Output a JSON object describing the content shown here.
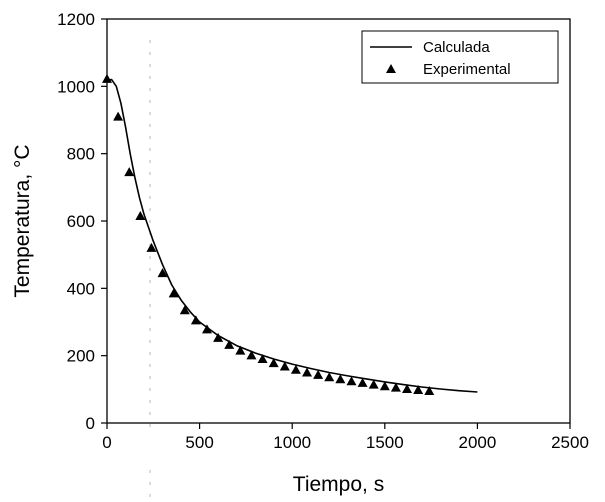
{
  "chart_data": {
    "type": "line",
    "title": "",
    "xlabel": "Tiempo, s",
    "ylabel": "Temperatura, °C",
    "xlim": [
      0,
      2500
    ],
    "ylim": [
      0,
      1200
    ],
    "xticks": [
      0,
      500,
      1000,
      1500,
      2000,
      2500
    ],
    "yticks": [
      0,
      200,
      400,
      600,
      800,
      1000,
      1200
    ],
    "xtick_labels": [
      "0",
      "500",
      "1000",
      "1500",
      "2000",
      "2500"
    ],
    "ytick_labels": [
      "0",
      "200",
      "400",
      "600",
      "800",
      "1000",
      "1200"
    ],
    "grid": false,
    "legend_position": "top-right",
    "series": [
      {
        "name": "Calculada",
        "kind": "line",
        "color": "#000000",
        "x": [
          0,
          25,
          50,
          75,
          100,
          125,
          150,
          175,
          200,
          250,
          300,
          350,
          400,
          450,
          500,
          600,
          700,
          800,
          900,
          1000,
          1100,
          1200,
          1300,
          1400,
          1500,
          1600,
          1700,
          1800,
          1900,
          2000
        ],
        "y": [
          1018,
          1020,
          1000,
          950,
          880,
          800,
          730,
          670,
          620,
          540,
          470,
          410,
          365,
          330,
          300,
          260,
          230,
          208,
          190,
          175,
          162,
          150,
          140,
          131,
          122,
          114,
          107,
          101,
          96,
          92
        ]
      },
      {
        "name": "Experimental",
        "kind": "scatter",
        "marker": "triangle",
        "color": "#000000",
        "x": [
          0,
          60,
          120,
          180,
          240,
          300,
          360,
          420,
          480,
          540,
          600,
          660,
          720,
          780,
          840,
          900,
          960,
          1020,
          1080,
          1140,
          1200,
          1260,
          1320,
          1380,
          1440,
          1500,
          1560,
          1620,
          1680,
          1740
        ],
        "y": [
          1022,
          910,
          745,
          615,
          520,
          445,
          385,
          335,
          305,
          278,
          253,
          232,
          215,
          201,
          190,
          178,
          168,
          158,
          150,
          143,
          136,
          130,
          124,
          119,
          114,
          109,
          105,
          101,
          98,
          95
        ]
      }
    ]
  }
}
